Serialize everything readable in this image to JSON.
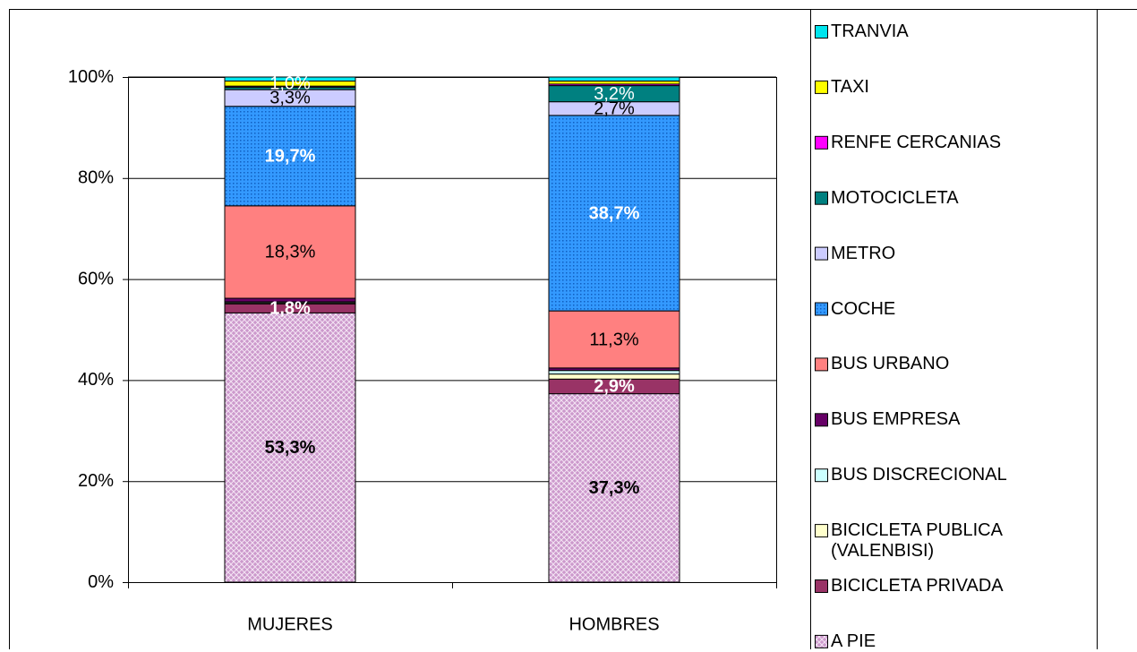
{
  "chart_data": {
    "type": "stacked_bar",
    "categories": [
      "MUJERES",
      "HOMBRES"
    ],
    "ylim": [
      0,
      100
    ],
    "yticks": [
      {
        "value": 0,
        "label": "0%"
      },
      {
        "value": 20,
        "label": "20%"
      },
      {
        "value": 40,
        "label": "40%"
      },
      {
        "value": 60,
        "label": "60%"
      },
      {
        "value": 80,
        "label": "80%"
      },
      {
        "value": 100,
        "label": "100%"
      }
    ],
    "grid": true,
    "legend": "right",
    "series": [
      {
        "name": "A PIE",
        "color": "#cc99cc",
        "values": [
          53.3,
          37.3
        ],
        "value_labels": [
          "53,3%",
          "37,3%"
        ]
      },
      {
        "name": "BICICLETA PRIVADA",
        "color": "#993366",
        "values": [
          1.8,
          2.9
        ],
        "value_labels": [
          "1,8%",
          "2,9%"
        ]
      },
      {
        "name": "BICICLETA PUBLICA (VALENBISI)",
        "color": "#ffffcc",
        "values": [
          0.2,
          1.0
        ],
        "value_labels": [
          null,
          null
        ]
      },
      {
        "name": "BUS DISCRECIONAL",
        "color": "#ccffff",
        "values": [
          0.2,
          0.7
        ],
        "value_labels": [
          null,
          null
        ]
      },
      {
        "name": "BUS EMPRESA",
        "color": "#660066",
        "values": [
          0.7,
          0.5
        ],
        "value_labels": [
          null,
          null
        ]
      },
      {
        "name": "BUS URBANO",
        "color": "#ff8080",
        "values": [
          18.3,
          11.3
        ],
        "value_labels": [
          "18,3%",
          "11,3%"
        ]
      },
      {
        "name": "COCHE",
        "color": "#3399ff",
        "values": [
          19.7,
          38.7
        ],
        "value_labels": [
          "19,7%",
          "38,7%"
        ]
      },
      {
        "name": "METRO",
        "color": "#ccccff",
        "values": [
          3.3,
          2.7
        ],
        "value_labels": [
          "3,3%",
          "2,7%"
        ]
      },
      {
        "name": "MOTOCICLETA",
        "color": "#008080",
        "values": [
          0.5,
          3.2
        ],
        "value_labels": [
          null,
          "3,2%"
        ]
      },
      {
        "name": "RENFE CERCANIAS",
        "color": "#ff00ff",
        "values": [
          0.2,
          0.3
        ],
        "value_labels": [
          null,
          null
        ]
      },
      {
        "name": "TAXI",
        "color": "#ffff00",
        "values": [
          1.0,
          0.6
        ],
        "value_labels": [
          "1,0%",
          null
        ]
      },
      {
        "name": "TRANVIA",
        "color": "#00e5ee",
        "values": [
          0.8,
          0.8
        ],
        "value_labels": [
          null,
          null
        ]
      }
    ]
  }
}
